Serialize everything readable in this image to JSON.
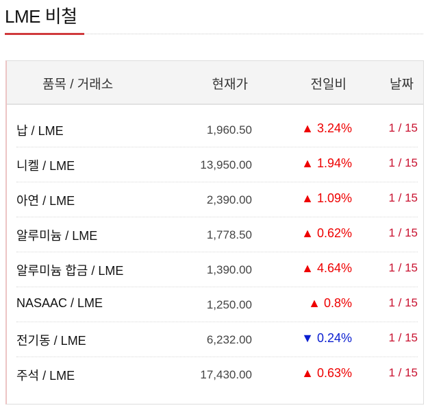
{
  "title": "LME 비철",
  "colors": {
    "accent": "#d0393c",
    "up": "#ee0000",
    "down": "#0a1ed0",
    "date": "#c8102e"
  },
  "headers": {
    "item": "품목 / 거래소",
    "price": "현재가",
    "change": "전일비",
    "date": "날짜"
  },
  "rows": [
    {
      "name": "납 / LME",
      "price": "1,960.50",
      "dir": "up",
      "arrow": "▲",
      "change": "3.24%",
      "date": "1 / 15"
    },
    {
      "name": "니켈 / LME",
      "price": "13,950.00",
      "dir": "up",
      "arrow": "▲",
      "change": "1.94%",
      "date": "1 / 15"
    },
    {
      "name": "아연 / LME",
      "price": "2,390.00",
      "dir": "up",
      "arrow": "▲",
      "change": "1.09%",
      "date": "1 / 15"
    },
    {
      "name": "알루미늄 / LME",
      "price": "1,778.50",
      "dir": "up",
      "arrow": "▲",
      "change": "0.62%",
      "date": "1 / 15"
    },
    {
      "name": "알루미늄 합금 / LME",
      "price": "1,390.00",
      "dir": "up",
      "arrow": "▲",
      "change": "4.64%",
      "date": "1 / 15"
    },
    {
      "name": "NASAAC / LME",
      "price": "1,250.00",
      "dir": "up",
      "arrow": "▲",
      "change": "0.8%",
      "date": "1 / 15"
    },
    {
      "name": "전기동 / LME",
      "price": "6,232.00",
      "dir": "down",
      "arrow": "▼",
      "change": "0.24%",
      "date": "1 / 15"
    },
    {
      "name": "주석 / LME",
      "price": "17,430.00",
      "dir": "up",
      "arrow": "▲",
      "change": "0.63%",
      "date": "1 / 15"
    }
  ]
}
